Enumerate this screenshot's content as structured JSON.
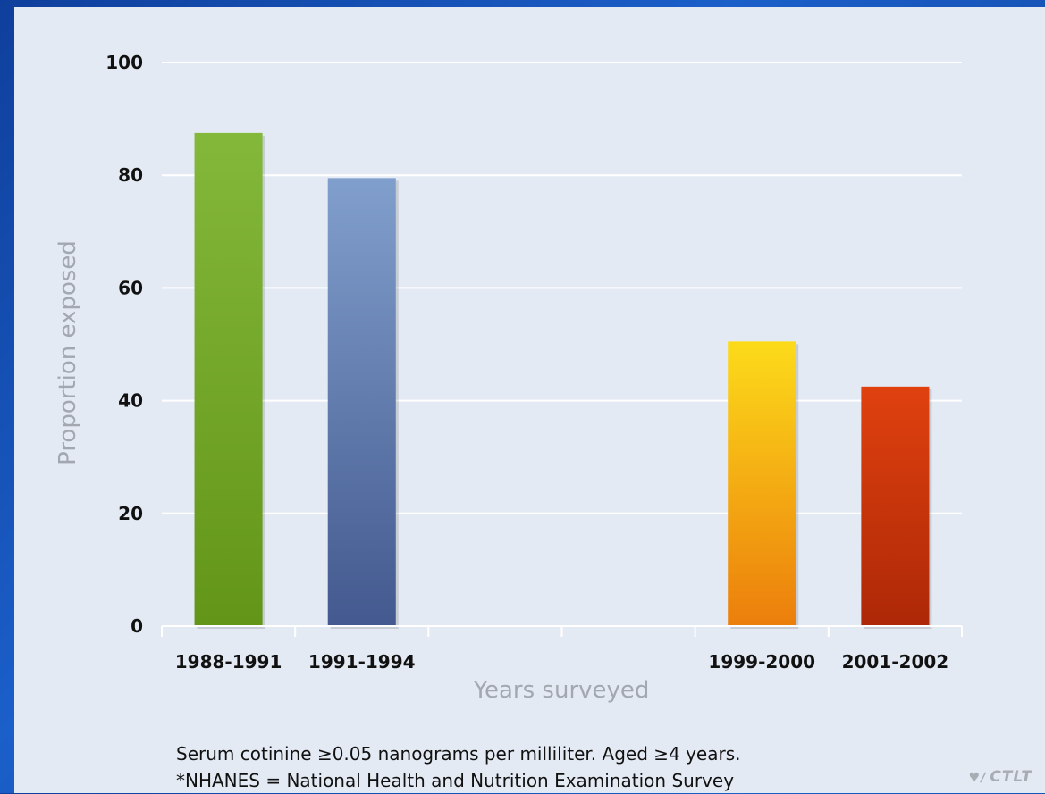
{
  "chart_data": {
    "type": "bar",
    "categories": [
      "1988-1991",
      "1991-1994",
      "",
      "",
      "1999-2000",
      "2001-2002"
    ],
    "values": [
      87.5,
      79.5,
      null,
      null,
      50.5,
      42.5
    ],
    "colors": [
      [
        "#84b83a",
        "#629518"
      ],
      [
        "#819fcc",
        "#43598f"
      ],
      null,
      null,
      [
        "#fcdb1a",
        "#ec7e0c"
      ],
      [
        "#e0410f",
        "#ad2807"
      ]
    ],
    "xlabel": "Years surveyed",
    "ylabel": "Proportion exposed",
    "ylim": [
      0,
      100
    ],
    "yticks": [
      0,
      20,
      40,
      60,
      80,
      100
    ],
    "grid": true
  },
  "footnotes": {
    "line1": "Serum cotinine ≥0.05 nanograms per milliliter.  Aged ≥4 years.",
    "line2": "*NHANES = National Health and Nutrition Examination Survey"
  },
  "logo": {
    "text": "CTLT",
    "icon": "ctlt-logo-icon"
  }
}
